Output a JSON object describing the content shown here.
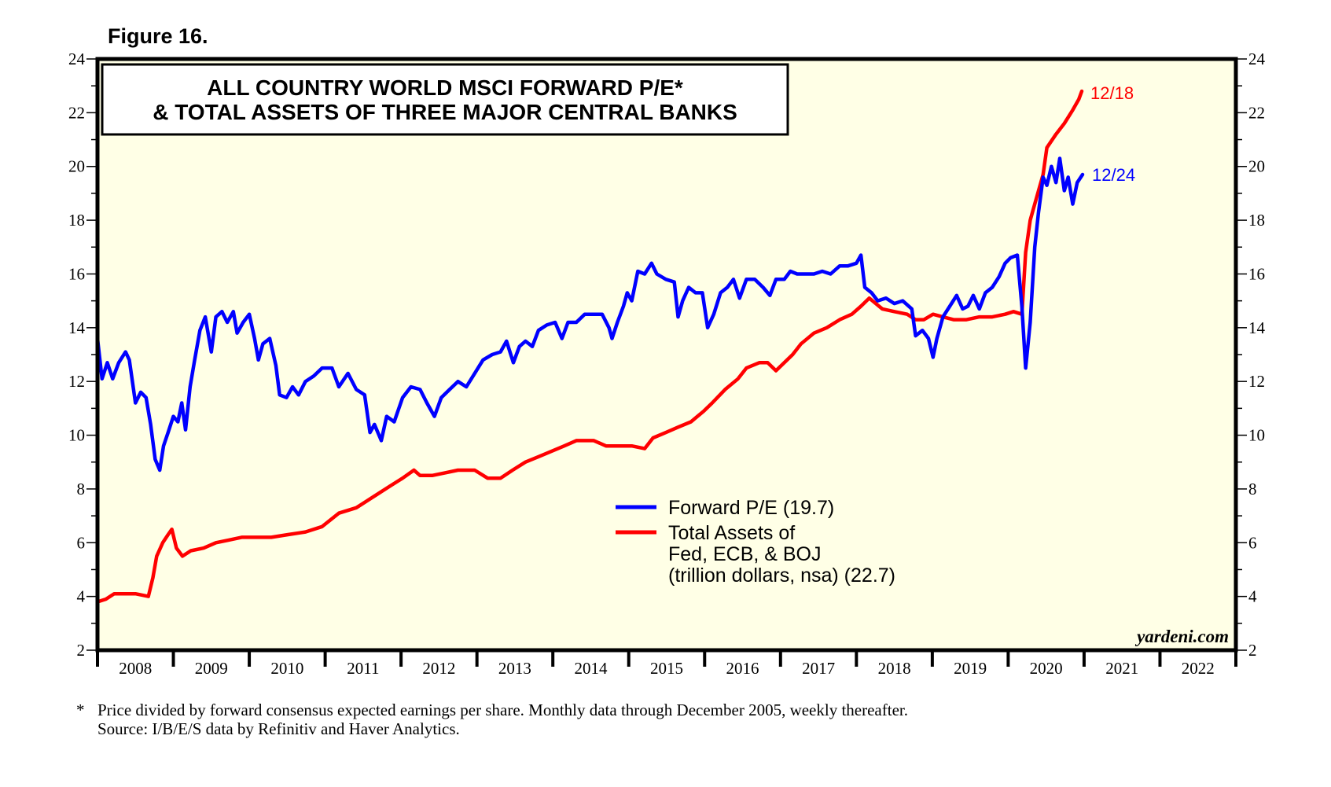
{
  "figure_label": "Figure 16.",
  "source_tag": "yardeni.com",
  "footnote": {
    "marker": "*",
    "line1": "Price divided by forward consensus expected earnings per share. Monthly data through December 2005, weekly thereafter.",
    "line2": "Source: I/B/E/S data by Refinitiv and Haver Analytics."
  },
  "colors": {
    "pe": "#0000ff",
    "assets": "#ff0000",
    "plot_bg": "#ffffe6",
    "axis": "#000000"
  },
  "chart_data": {
    "type": "line",
    "title_lines": [
      "ALL COUNTRY WORLD MSCI FORWARD P/E*",
      "& TOTAL ASSETS OF THREE MAJOR CENTRAL BANKS"
    ],
    "xlabel": "",
    "ylabel": "",
    "xlim": [
      2008,
      2023
    ],
    "ylim": [
      2,
      24
    ],
    "x_tick_labels": [
      "2008",
      "2009",
      "2010",
      "2011",
      "2012",
      "2013",
      "2014",
      "2015",
      "2016",
      "2017",
      "2018",
      "2019",
      "2020",
      "2021",
      "2022"
    ],
    "y_ticks": [
      2,
      4,
      6,
      8,
      10,
      12,
      14,
      16,
      18,
      20,
      22,
      24
    ],
    "y_tick_labels": [
      "2",
      "4",
      "6",
      "8",
      "10",
      "12",
      "14",
      "16",
      "18",
      "20",
      "22",
      "24"
    ],
    "grid": false,
    "legend_position": "center-right",
    "legend": [
      {
        "lines": [
          "Forward P/E (19.7)"
        ]
      },
      {
        "lines": [
          "Total Assets of",
          "Fed, ECB, & BOJ",
          "(trillion dollars, nsa) (22.7)"
        ]
      }
    ],
    "series": [
      {
        "name": "Forward P/E",
        "end_label": "12/24",
        "last_value": 19.7,
        "points": [
          [
            2008.0,
            13.6
          ],
          [
            2008.06,
            12.1
          ],
          [
            2008.13,
            12.7
          ],
          [
            2008.2,
            12.1
          ],
          [
            2008.28,
            12.7
          ],
          [
            2008.37,
            13.1
          ],
          [
            2008.42,
            12.8
          ],
          [
            2008.5,
            11.2
          ],
          [
            2008.57,
            11.6
          ],
          [
            2008.64,
            11.4
          ],
          [
            2008.7,
            10.4
          ],
          [
            2008.76,
            9.1
          ],
          [
            2008.82,
            8.7
          ],
          [
            2008.87,
            9.6
          ],
          [
            2008.93,
            10.1
          ],
          [
            2009.0,
            10.7
          ],
          [
            2009.06,
            10.5
          ],
          [
            2009.11,
            11.2
          ],
          [
            2009.16,
            10.2
          ],
          [
            2009.22,
            11.8
          ],
          [
            2009.28,
            12.8
          ],
          [
            2009.35,
            13.9
          ],
          [
            2009.42,
            14.4
          ],
          [
            2009.5,
            13.1
          ],
          [
            2009.56,
            14.4
          ],
          [
            2009.64,
            14.6
          ],
          [
            2009.71,
            14.2
          ],
          [
            2009.79,
            14.6
          ],
          [
            2009.84,
            13.8
          ],
          [
            2009.92,
            14.2
          ],
          [
            2010.0,
            14.5
          ],
          [
            2010.07,
            13.6
          ],
          [
            2010.12,
            12.8
          ],
          [
            2010.18,
            13.4
          ],
          [
            2010.27,
            13.6
          ],
          [
            2010.35,
            12.6
          ],
          [
            2010.4,
            11.5
          ],
          [
            2010.49,
            11.4
          ],
          [
            2010.57,
            11.8
          ],
          [
            2010.65,
            11.5
          ],
          [
            2010.74,
            12.0
          ],
          [
            2010.85,
            12.2
          ],
          [
            2010.96,
            12.5
          ],
          [
            2011.09,
            12.5
          ],
          [
            2011.18,
            11.8
          ],
          [
            2011.3,
            12.3
          ],
          [
            2011.41,
            11.7
          ],
          [
            2011.52,
            11.5
          ],
          [
            2011.59,
            10.1
          ],
          [
            2011.65,
            10.4
          ],
          [
            2011.74,
            9.8
          ],
          [
            2011.81,
            10.7
          ],
          [
            2011.91,
            10.5
          ],
          [
            2012.02,
            11.4
          ],
          [
            2012.13,
            11.8
          ],
          [
            2012.25,
            11.7
          ],
          [
            2012.34,
            11.2
          ],
          [
            2012.44,
            10.7
          ],
          [
            2012.53,
            11.4
          ],
          [
            2012.64,
            11.7
          ],
          [
            2012.75,
            12.0
          ],
          [
            2012.86,
            11.8
          ],
          [
            2012.97,
            12.3
          ],
          [
            2013.08,
            12.8
          ],
          [
            2013.2,
            13.0
          ],
          [
            2013.31,
            13.1
          ],
          [
            2013.39,
            13.5
          ],
          [
            2013.48,
            12.7
          ],
          [
            2013.56,
            13.3
          ],
          [
            2013.64,
            13.5
          ],
          [
            2013.73,
            13.3
          ],
          [
            2013.81,
            13.9
          ],
          [
            2013.92,
            14.1
          ],
          [
            2014.03,
            14.2
          ],
          [
            2014.12,
            13.6
          ],
          [
            2014.2,
            14.2
          ],
          [
            2014.31,
            14.2
          ],
          [
            2014.42,
            14.5
          ],
          [
            2014.54,
            14.5
          ],
          [
            2014.65,
            14.5
          ],
          [
            2014.74,
            14.0
          ],
          [
            2014.78,
            13.6
          ],
          [
            2014.85,
            14.2
          ],
          [
            2014.93,
            14.8
          ],
          [
            2014.98,
            15.3
          ],
          [
            2015.04,
            15.0
          ],
          [
            2015.12,
            16.1
          ],
          [
            2015.21,
            16.0
          ],
          [
            2015.3,
            16.4
          ],
          [
            2015.37,
            16.0
          ],
          [
            2015.49,
            15.8
          ],
          [
            2015.6,
            15.7
          ],
          [
            2015.65,
            14.4
          ],
          [
            2015.71,
            15.0
          ],
          [
            2015.79,
            15.5
          ],
          [
            2015.88,
            15.3
          ],
          [
            2015.97,
            15.3
          ],
          [
            2016.04,
            14.0
          ],
          [
            2016.12,
            14.5
          ],
          [
            2016.21,
            15.3
          ],
          [
            2016.3,
            15.5
          ],
          [
            2016.38,
            15.8
          ],
          [
            2016.46,
            15.1
          ],
          [
            2016.55,
            15.8
          ],
          [
            2016.66,
            15.8
          ],
          [
            2016.77,
            15.5
          ],
          [
            2016.86,
            15.2
          ],
          [
            2016.94,
            15.8
          ],
          [
            2017.05,
            15.8
          ],
          [
            2017.13,
            16.1
          ],
          [
            2017.22,
            16.0
          ],
          [
            2017.33,
            16.0
          ],
          [
            2017.44,
            16.0
          ],
          [
            2017.55,
            16.1
          ],
          [
            2017.66,
            16.0
          ],
          [
            2017.78,
            16.3
          ],
          [
            2017.89,
            16.3
          ],
          [
            2018.0,
            16.4
          ],
          [
            2018.06,
            16.7
          ],
          [
            2018.11,
            15.5
          ],
          [
            2018.2,
            15.3
          ],
          [
            2018.28,
            15.0
          ],
          [
            2018.39,
            15.1
          ],
          [
            2018.5,
            14.9
          ],
          [
            2018.61,
            15.0
          ],
          [
            2018.73,
            14.7
          ],
          [
            2018.78,
            13.7
          ],
          [
            2018.87,
            13.9
          ],
          [
            2018.95,
            13.6
          ],
          [
            2019.01,
            12.9
          ],
          [
            2019.06,
            13.6
          ],
          [
            2019.14,
            14.4
          ],
          [
            2019.23,
            14.8
          ],
          [
            2019.32,
            15.2
          ],
          [
            2019.4,
            14.7
          ],
          [
            2019.47,
            14.8
          ],
          [
            2019.54,
            15.2
          ],
          [
            2019.62,
            14.7
          ],
          [
            2019.7,
            15.3
          ],
          [
            2019.79,
            15.5
          ],
          [
            2019.88,
            15.9
          ],
          [
            2019.96,
            16.4
          ],
          [
            2020.03,
            16.6
          ],
          [
            2020.12,
            16.7
          ],
          [
            2020.18,
            14.8
          ],
          [
            2020.23,
            12.5
          ],
          [
            2020.29,
            14.2
          ],
          [
            2020.35,
            17.0
          ],
          [
            2020.4,
            18.3
          ],
          [
            2020.46,
            19.6
          ],
          [
            2020.51,
            19.3
          ],
          [
            2020.57,
            20.0
          ],
          [
            2020.63,
            19.4
          ],
          [
            2020.68,
            20.3
          ],
          [
            2020.74,
            19.1
          ],
          [
            2020.79,
            19.6
          ],
          [
            2020.85,
            18.6
          ],
          [
            2020.91,
            19.4
          ],
          [
            2020.98,
            19.7
          ]
        ]
      },
      {
        "name": "Total Assets of Fed, ECB, & BOJ",
        "end_label": "12/18",
        "last_value": 22.7,
        "points": [
          [
            2008.0,
            3.8
          ],
          [
            2008.11,
            3.9
          ],
          [
            2008.22,
            4.1
          ],
          [
            2008.34,
            4.1
          ],
          [
            2008.5,
            4.1
          ],
          [
            2008.67,
            4.0
          ],
          [
            2008.73,
            4.7
          ],
          [
            2008.78,
            5.5
          ],
          [
            2008.86,
            6.0
          ],
          [
            2008.93,
            6.3
          ],
          [
            2008.98,
            6.5
          ],
          [
            2009.04,
            5.8
          ],
          [
            2009.12,
            5.5
          ],
          [
            2009.23,
            5.7
          ],
          [
            2009.4,
            5.8
          ],
          [
            2009.56,
            6.0
          ],
          [
            2009.73,
            6.1
          ],
          [
            2009.9,
            6.2
          ],
          [
            2010.07,
            6.2
          ],
          [
            2010.29,
            6.2
          ],
          [
            2010.51,
            6.3
          ],
          [
            2010.74,
            6.4
          ],
          [
            2010.96,
            6.6
          ],
          [
            2011.18,
            7.1
          ],
          [
            2011.41,
            7.3
          ],
          [
            2011.63,
            7.7
          ],
          [
            2011.85,
            8.1
          ],
          [
            2012.02,
            8.4
          ],
          [
            2012.17,
            8.7
          ],
          [
            2012.25,
            8.5
          ],
          [
            2012.41,
            8.5
          ],
          [
            2012.58,
            8.6
          ],
          [
            2012.75,
            8.7
          ],
          [
            2012.97,
            8.7
          ],
          [
            2013.14,
            8.4
          ],
          [
            2013.31,
            8.4
          ],
          [
            2013.47,
            8.7
          ],
          [
            2013.64,
            9.0
          ],
          [
            2013.81,
            9.2
          ],
          [
            2013.98,
            9.4
          ],
          [
            2014.15,
            9.6
          ],
          [
            2014.31,
            9.8
          ],
          [
            2014.54,
            9.8
          ],
          [
            2014.7,
            9.6
          ],
          [
            2014.87,
            9.6
          ],
          [
            2015.04,
            9.6
          ],
          [
            2015.21,
            9.5
          ],
          [
            2015.32,
            9.9
          ],
          [
            2015.49,
            10.1
          ],
          [
            2015.65,
            10.3
          ],
          [
            2015.82,
            10.5
          ],
          [
            2015.99,
            10.9
          ],
          [
            2016.1,
            11.2
          ],
          [
            2016.27,
            11.7
          ],
          [
            2016.44,
            12.1
          ],
          [
            2016.55,
            12.5
          ],
          [
            2016.72,
            12.7
          ],
          [
            2016.83,
            12.7
          ],
          [
            2016.94,
            12.4
          ],
          [
            2017.05,
            12.7
          ],
          [
            2017.16,
            13.0
          ],
          [
            2017.27,
            13.4
          ],
          [
            2017.44,
            13.8
          ],
          [
            2017.61,
            14.0
          ],
          [
            2017.78,
            14.3
          ],
          [
            2017.94,
            14.5
          ],
          [
            2018.06,
            14.8
          ],
          [
            2018.17,
            15.1
          ],
          [
            2018.34,
            14.7
          ],
          [
            2018.5,
            14.6
          ],
          [
            2018.67,
            14.5
          ],
          [
            2018.78,
            14.3
          ],
          [
            2018.89,
            14.3
          ],
          [
            2019.01,
            14.5
          ],
          [
            2019.14,
            14.4
          ],
          [
            2019.28,
            14.3
          ],
          [
            2019.45,
            14.3
          ],
          [
            2019.62,
            14.4
          ],
          [
            2019.79,
            14.4
          ],
          [
            2019.96,
            14.5
          ],
          [
            2020.07,
            14.6
          ],
          [
            2020.18,
            14.5
          ],
          [
            2020.23,
            16.8
          ],
          [
            2020.29,
            18.0
          ],
          [
            2020.37,
            18.8
          ],
          [
            2020.46,
            19.7
          ],
          [
            2020.51,
            20.7
          ],
          [
            2020.63,
            21.2
          ],
          [
            2020.74,
            21.6
          ],
          [
            2020.85,
            22.1
          ],
          [
            2020.93,
            22.5
          ],
          [
            2020.97,
            22.8
          ]
        ]
      }
    ]
  }
}
